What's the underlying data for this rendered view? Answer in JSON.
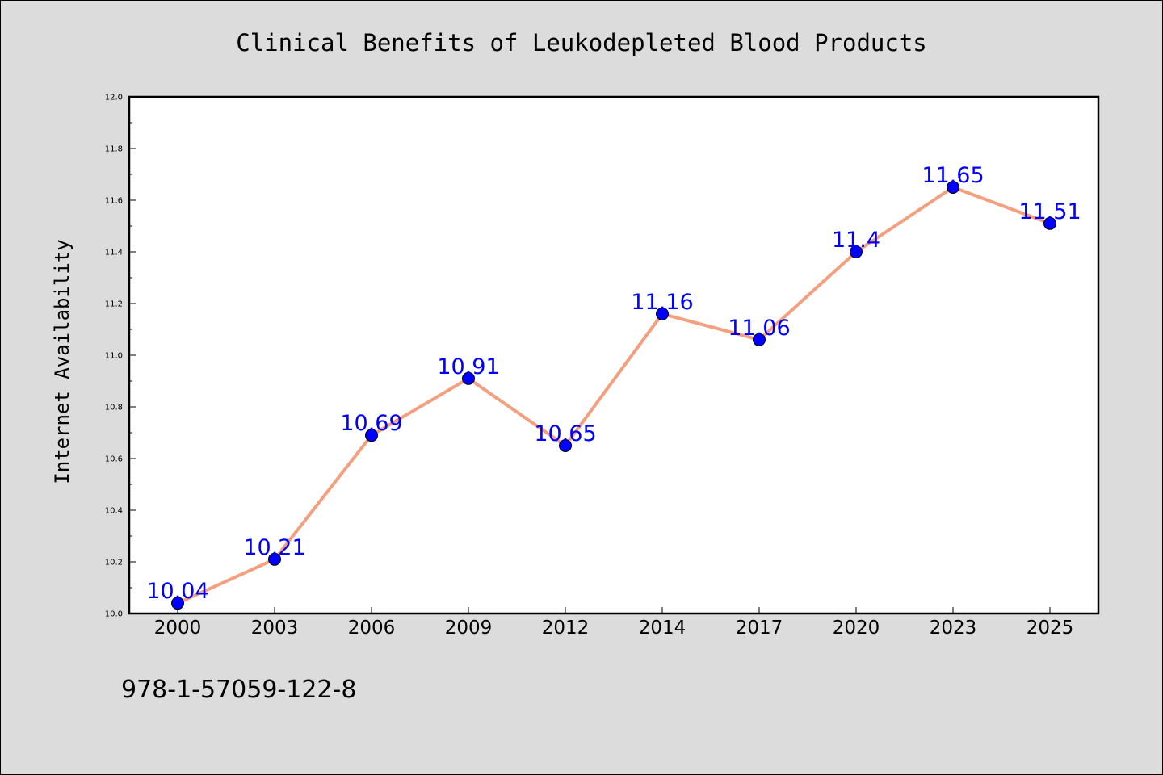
{
  "chart_data": {
    "type": "line",
    "title": "Clinical Benefits of Leukodepleted Blood Products",
    "xlabel": "",
    "ylabel": "Internet Availability",
    "categories": [
      "2000",
      "2003",
      "2006",
      "2009",
      "2012",
      "2014",
      "2017",
      "2020",
      "2023",
      "2025"
    ],
    "series": [
      {
        "values": [
          10.04,
          10.21,
          10.69,
          10.91,
          10.65,
          11.16,
          11.06,
          11.4,
          11.65,
          11.51
        ],
        "data_labels": [
          "10.04",
          "10.21",
          "10.69",
          "10.91",
          "10.65",
          "11.16",
          "11.06",
          "11.4",
          "11.65",
          "11.51"
        ],
        "line_color": "#f4a07f",
        "marker_color": "#0000ff"
      }
    ],
    "ylim": [
      10.0,
      12.0
    ],
    "yticks": [
      "10.0",
      "10.2",
      "10.4",
      "10.6",
      "10.8",
      "11.0",
      "11.2",
      "11.4",
      "11.6",
      "11.8",
      "12.0"
    ],
    "grid": false,
    "legend": "none",
    "background_color": "#dcdcdc",
    "plot_background_color": "#ffffff",
    "label_color": "#0000ff"
  },
  "footer": {
    "isbn": "978-1-57059-122-8"
  }
}
